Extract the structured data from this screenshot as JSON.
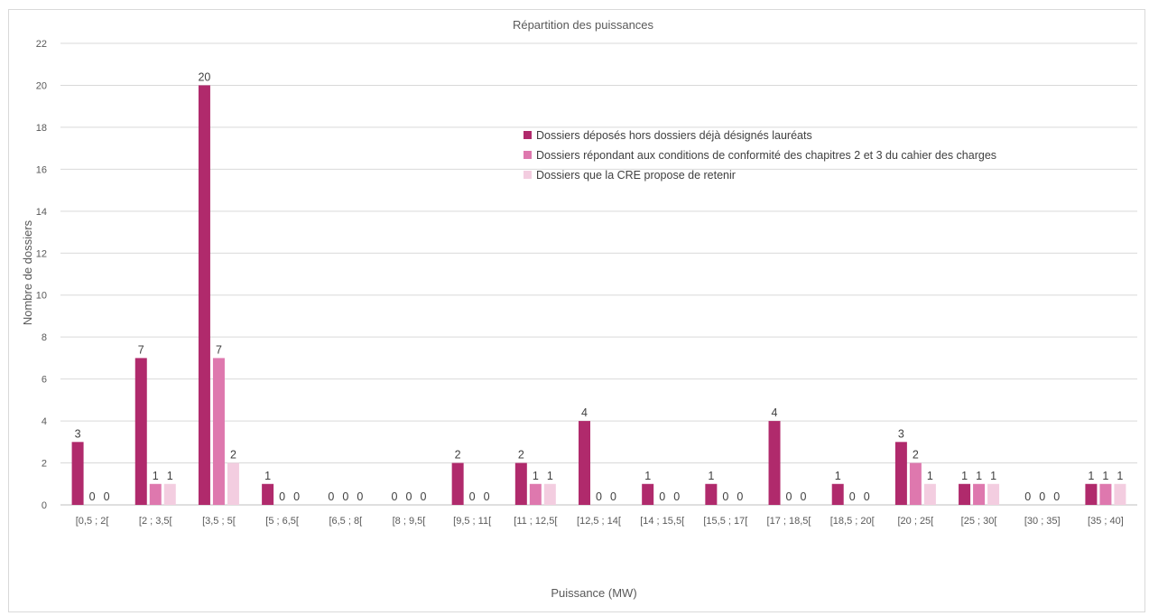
{
  "chart_data": {
    "type": "bar",
    "title": "Répartition des puissances",
    "xlabel": "Puissance (MW)",
    "ylabel": "Nombre de dossiers",
    "ylim": [
      0,
      22
    ],
    "yticks": [
      0,
      2,
      4,
      6,
      8,
      10,
      12,
      14,
      16,
      18,
      20,
      22
    ],
    "grid": true,
    "legend_position": "top-right",
    "categories": [
      "[0,5 ; 2[",
      "[2 ; 3,5[",
      "[3,5 ; 5[",
      "[5 ; 6,5[",
      "[6,5 ; 8[",
      "[8 ; 9,5[",
      "[9,5 ; 11[",
      "[11 ; 12,5[",
      "[12,5 ; 14[",
      "[14 ; 15,5[",
      "[15,5 ; 17[",
      "[17 ; 18,5[",
      "[18,5 ; 20[",
      "[20 ; 25[",
      "[25 ; 30[",
      "[30 ; 35]",
      "[35 ; 40]"
    ],
    "series": [
      {
        "name": "Dossiers déposés hors dossiers déjà désignés lauréats",
        "color": "#b02a6c",
        "values": [
          3,
          7,
          20,
          1,
          0,
          0,
          2,
          2,
          4,
          1,
          1,
          4,
          1,
          3,
          1,
          0,
          1
        ]
      },
      {
        "name": "Dossiers répondant aux conditions de conformité des chapitres 2 et 3 du cahier des charges",
        "color": "#de78ae",
        "values": [
          0,
          1,
          7,
          0,
          0,
          0,
          0,
          1,
          0,
          0,
          0,
          0,
          0,
          2,
          1,
          0,
          1
        ]
      },
      {
        "name": "Dossiers que la CRE propose de retenir",
        "color": "#f3cde0",
        "values": [
          0,
          1,
          2,
          0,
          0,
          0,
          0,
          1,
          0,
          0,
          0,
          0,
          0,
          1,
          1,
          0,
          1
        ]
      }
    ]
  }
}
